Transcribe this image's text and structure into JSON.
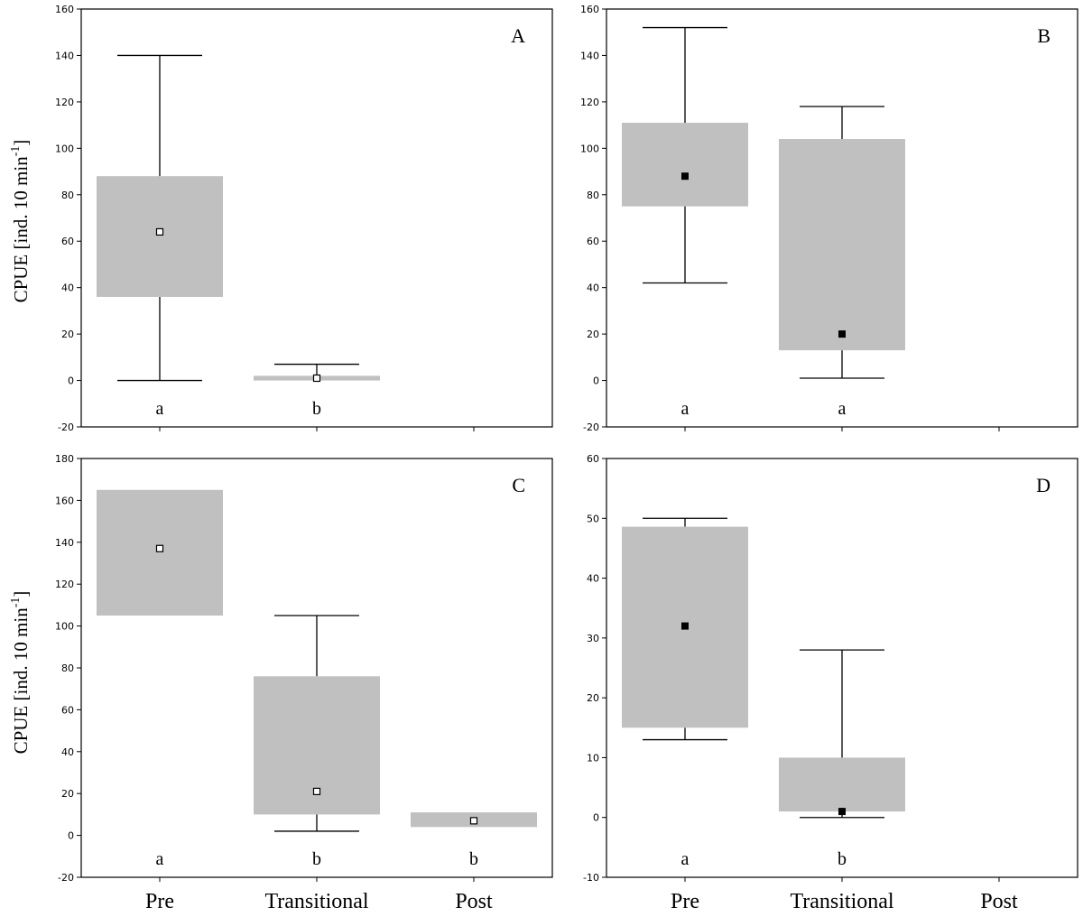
{
  "categories": [
    "Pre",
    "Transitional",
    "Post"
  ],
  "y_axis_label": "CPUE [ind. 10 min",
  "y_axis_label_exponent": "-1",
  "y_axis_label_close": "]",
  "colors": {
    "box": "#c0c0c0",
    "line": "#000000",
    "median_open": "#ffffff",
    "median_filled": "#000000"
  },
  "chart_data": [
    {
      "type": "box",
      "panel_label": "A",
      "categories": [
        "Pre",
        "Transitional",
        "Post"
      ],
      "ylim": [
        -20,
        160
      ],
      "yticks": [
        -20,
        0,
        20,
        40,
        60,
        80,
        100,
        120,
        140,
        160
      ],
      "marker": "open",
      "groups": [
        {
          "category": "Pre",
          "min": 0,
          "q1": 36,
          "median": 64,
          "q3": 88,
          "max": 140,
          "letter": "a"
        },
        {
          "category": "Transitional",
          "min": 0,
          "q1": 0,
          "median": 1,
          "q3": 2,
          "max": 7,
          "letter": "b"
        }
      ]
    },
    {
      "type": "box",
      "panel_label": "B",
      "categories": [
        "Pre",
        "Transitional",
        "Post"
      ],
      "ylim": [
        -20,
        160
      ],
      "yticks": [
        -20,
        0,
        20,
        40,
        60,
        80,
        100,
        120,
        140,
        160
      ],
      "marker": "filled",
      "groups": [
        {
          "category": "Pre",
          "min": 42,
          "q1": 75,
          "median": 88,
          "q3": 111,
          "max": 152,
          "letter": "a"
        },
        {
          "category": "Transitional",
          "min": 1,
          "q1": 13,
          "median": 20,
          "q3": 104,
          "max": 118,
          "letter": "a"
        }
      ]
    },
    {
      "type": "box",
      "panel_label": "C",
      "categories": [
        "Pre",
        "Transitional",
        "Post"
      ],
      "ylim": [
        -20,
        180
      ],
      "yticks": [
        -20,
        0,
        20,
        40,
        60,
        80,
        100,
        120,
        140,
        160,
        180
      ],
      "marker": "open",
      "groups": [
        {
          "category": "Pre",
          "min": 105,
          "q1": 105,
          "median": 137,
          "q3": 165,
          "max": 165,
          "letter": "a"
        },
        {
          "category": "Transitional",
          "min": 2,
          "q1": 10,
          "median": 21,
          "q3": 76,
          "max": 105,
          "letter": "b"
        },
        {
          "category": "Post",
          "min": 4,
          "q1": 4,
          "median": 7,
          "q3": 11,
          "max": 11,
          "letter": "b"
        }
      ]
    },
    {
      "type": "box",
      "panel_label": "D",
      "categories": [
        "Pre",
        "Transitional",
        "Post"
      ],
      "ylim": [
        -10,
        60
      ],
      "yticks": [
        -10,
        0,
        10,
        20,
        30,
        40,
        50,
        60
      ],
      "marker": "filled",
      "groups": [
        {
          "category": "Pre",
          "min": 13,
          "q1": 15,
          "median": 32,
          "q3": 48.6,
          "max": 50,
          "letter": "a"
        },
        {
          "category": "Transitional",
          "min": 0,
          "q1": 1,
          "median": 1,
          "q3": 10,
          "max": 28,
          "letter": "b"
        }
      ]
    }
  ]
}
